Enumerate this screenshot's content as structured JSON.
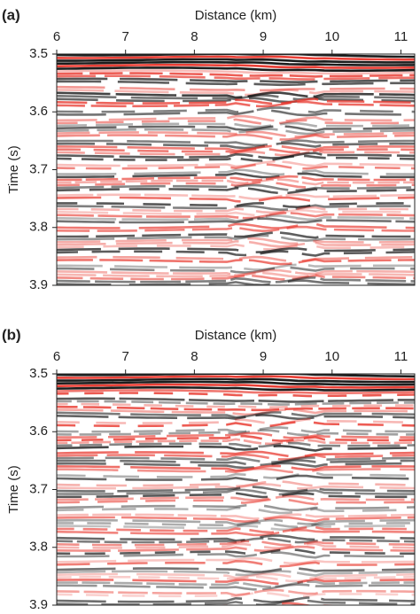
{
  "chart_data": [
    {
      "type": "seismic",
      "panel_label": "(a)",
      "x_label": "Distance (km)",
      "y_label": "Time (s)",
      "xlim": [
        6,
        11.2
      ],
      "xticks": [
        6,
        7,
        8,
        9,
        10,
        11
      ],
      "ylim": [
        3.5,
        3.9
      ],
      "yticks": [
        3.5,
        3.6,
        3.7,
        3.8,
        3.9
      ],
      "colors": [
        "#e8352b",
        "#111111"
      ]
    },
    {
      "type": "seismic",
      "panel_label": "(b)",
      "x_label": "Distance (km)",
      "y_label": "Time (s)",
      "xlim": [
        6,
        11.2
      ],
      "xticks": [
        6,
        7,
        8,
        9,
        10,
        11
      ],
      "ylim": [
        3.5,
        3.9
      ],
      "yticks": [
        3.5,
        3.6,
        3.7,
        3.8,
        3.9
      ],
      "colors": [
        "#e8352b",
        "#111111"
      ]
    }
  ]
}
